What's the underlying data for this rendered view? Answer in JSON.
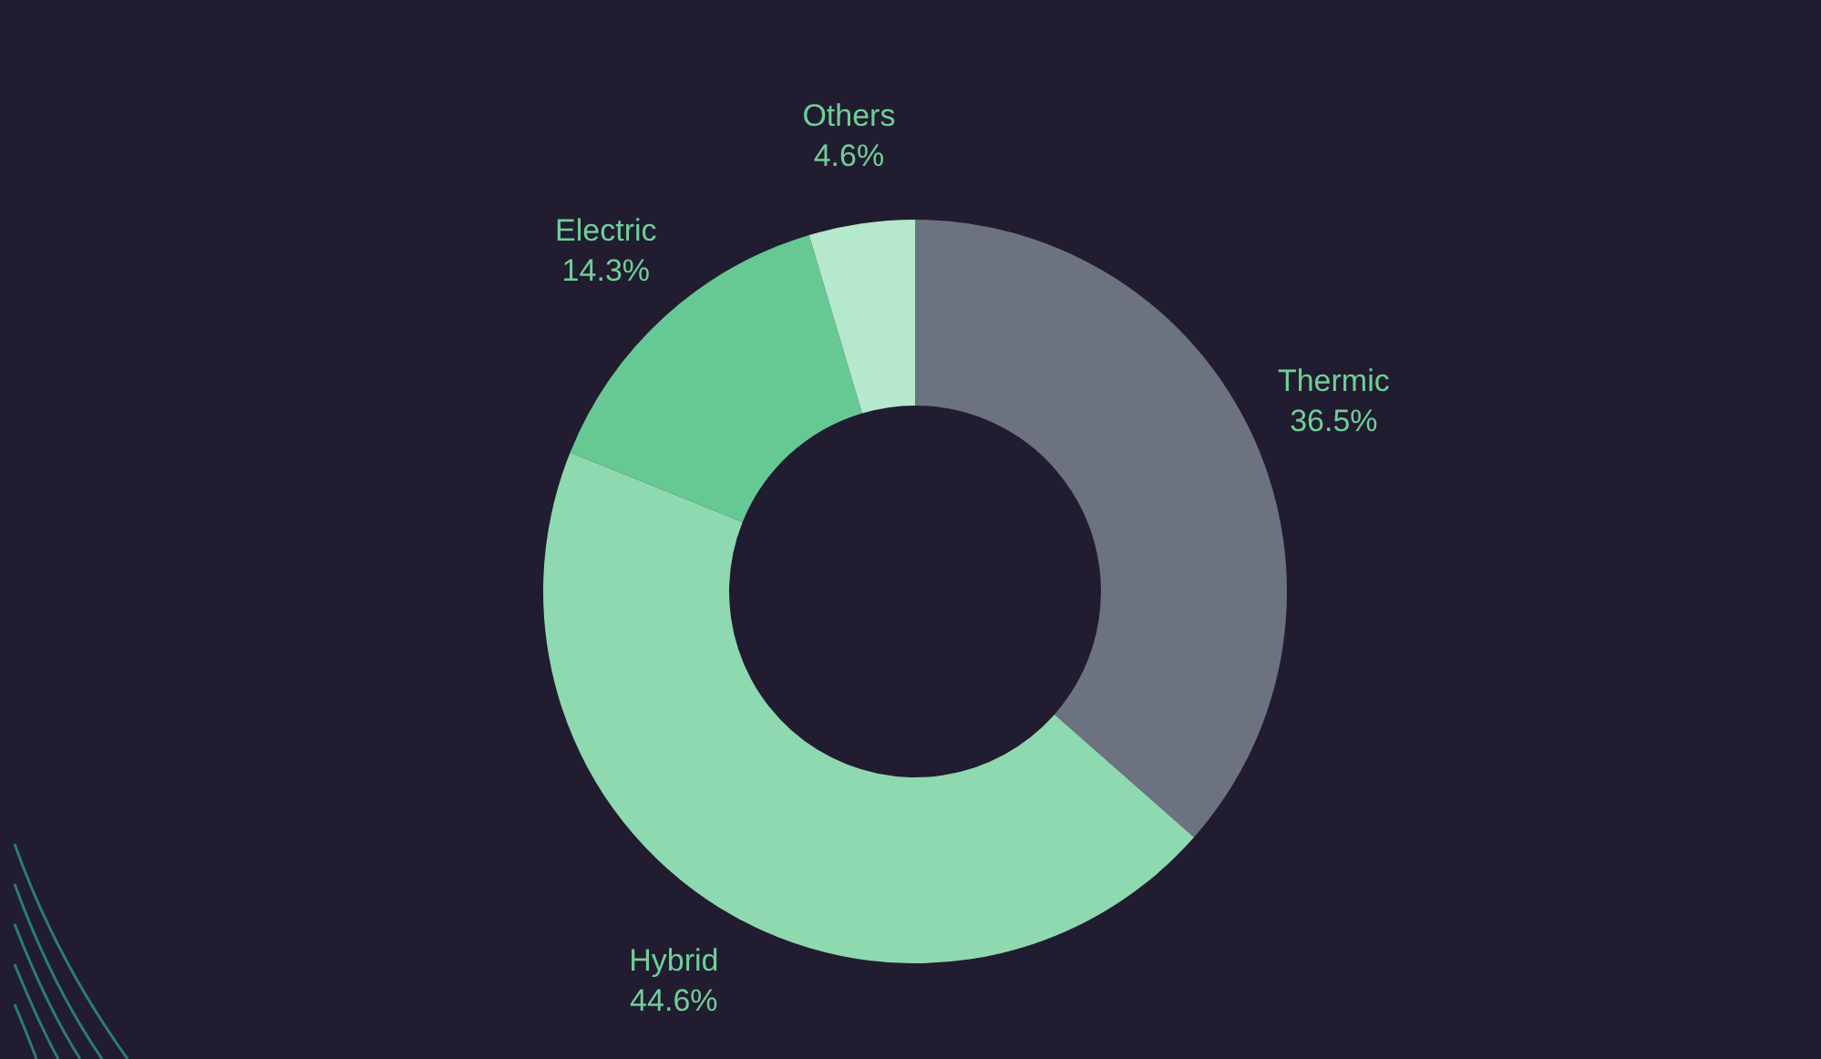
{
  "chart_data": {
    "type": "donut",
    "categories": [
      "Thermic",
      "Hybrid",
      "Electric",
      "Others"
    ],
    "values": [
      36.5,
      44.6,
      14.3,
      4.6
    ],
    "value_labels": [
      "36.5%",
      "44.6%",
      "14.3%",
      "4.6%"
    ],
    "colors": [
      "#6c7280",
      "#8fd9b0",
      "#66c993",
      "#b5e8cc"
    ],
    "legend": false
  }
}
